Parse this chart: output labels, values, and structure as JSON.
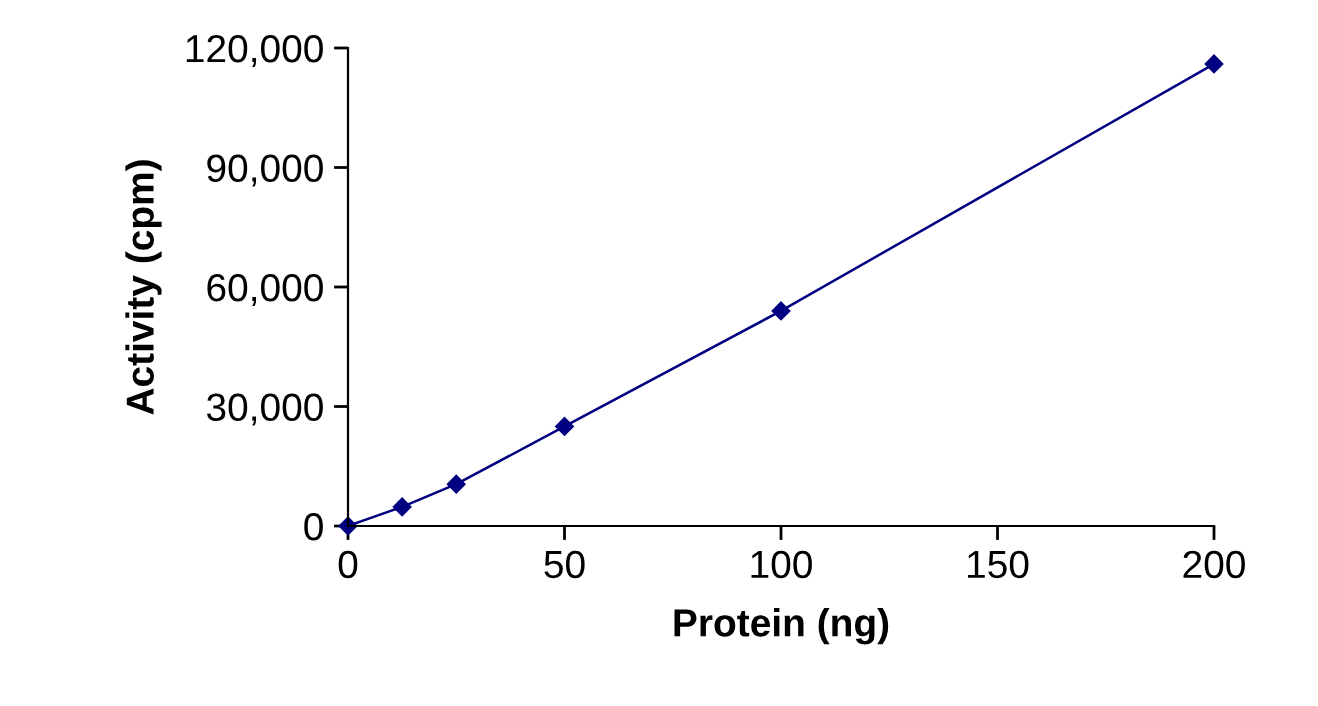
{
  "chart_data": {
    "type": "line",
    "xlabel": "Protein (ng)",
    "ylabel": "Activity (cpm)",
    "x": [
      0,
      12.5,
      25,
      50,
      100,
      200
    ],
    "series": [
      {
        "color": "#000080",
        "values": [
          0,
          4800,
          10500,
          25000,
          54000,
          116000
        ]
      }
    ],
    "xlim": [
      0,
      200
    ],
    "xticks": [
      0,
      50,
      100,
      150,
      200
    ],
    "ylim": [
      0,
      120000
    ],
    "yticks": [
      {
        "value": 0,
        "label": "0"
      },
      {
        "value": 30000,
        "label": "30,000"
      },
      {
        "value": 60000,
        "label": "60,000"
      },
      {
        "value": 90000,
        "label": "90,000"
      },
      {
        "value": 120000,
        "label": "120,000"
      }
    ],
    "marker": "diamond",
    "line_style": "solid",
    "grid": false,
    "legend": false
  }
}
